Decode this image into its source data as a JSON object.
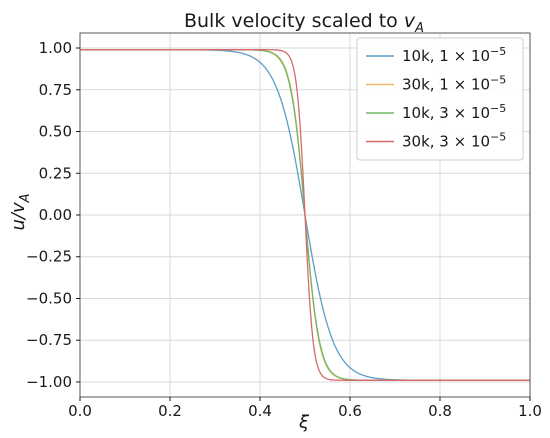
{
  "chart_data": {
    "type": "line",
    "title": "Bulk velocity scaled to v_A",
    "title_parts": {
      "main": "Bulk velocity scaled to ",
      "var": "v",
      "sub": "A"
    },
    "xlabel": "ξ",
    "ylabel": "u/v_A",
    "ylabel_parts": {
      "main": "u/v",
      "sub": "A"
    },
    "xlim": [
      0.0,
      1.0
    ],
    "ylim": [
      -1.09,
      1.09
    ],
    "xticks": [
      0.0,
      0.2,
      0.4,
      0.6,
      0.8,
      1.0
    ],
    "xtick_labels": [
      "0.0",
      "0.2",
      "0.4",
      "0.6",
      "0.8",
      "1.0"
    ],
    "yticks": [
      1.0,
      0.75,
      0.5,
      0.25,
      0.0,
      -0.25,
      -0.5,
      -0.75,
      -1.0
    ],
    "ytick_labels": [
      "1.00",
      "0.75",
      "0.50",
      "0.25",
      "0.00",
      "−0.25",
      "−0.50",
      "−0.75",
      "−1.00"
    ],
    "grid": true,
    "legend_position": "top-right",
    "series": [
      {
        "name": "10k, 1 × 10^−5",
        "label_main": "10k, 1 × 10",
        "label_exp": "−5",
        "color": "#5b9ec9",
        "center": 0.5,
        "width": 0.062,
        "amplitude": 0.99
      },
      {
        "name": "30k, 1 × 10^−5",
        "label_main": "30k, 1 × 10",
        "label_exp": "−5",
        "color": "#f3b76a",
        "center": 0.5,
        "width": 0.031,
        "amplitude": 0.99
      },
      {
        "name": "10k, 3 × 10^−5",
        "label_main": "10k, 3 × 10",
        "label_exp": "−5",
        "color": "#6db864",
        "center": 0.5,
        "width": 0.032,
        "amplitude": 0.99
      },
      {
        "name": "30k, 3 × 10^−5",
        "label_main": "30k, 3 × 10",
        "label_exp": "−5",
        "color": "#d66a6a",
        "center": 0.5,
        "width": 0.018,
        "amplitude": 0.99
      }
    ]
  }
}
